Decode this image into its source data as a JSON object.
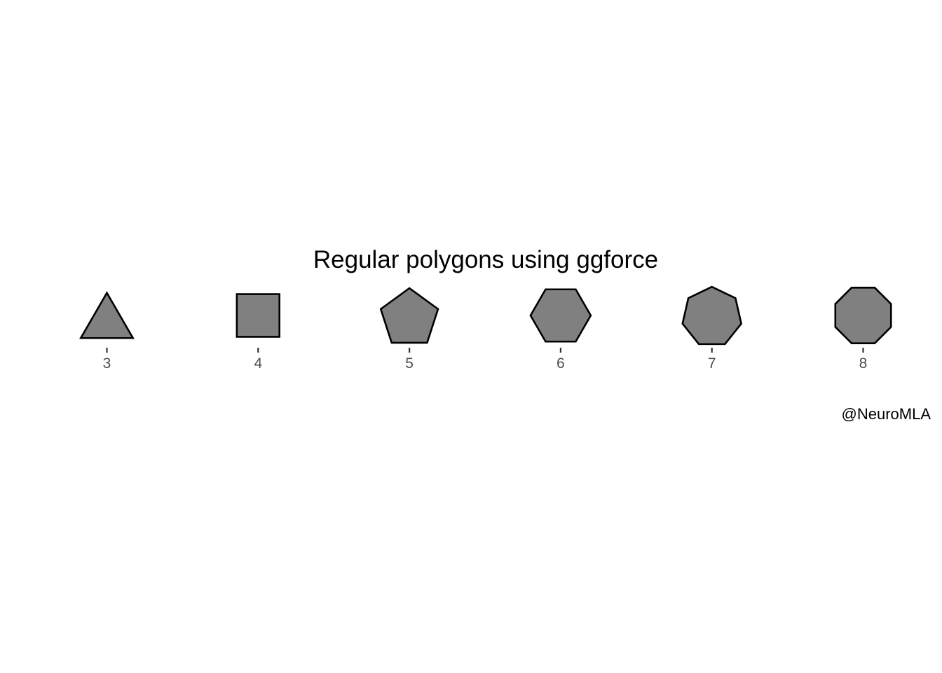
{
  "chart_data": {
    "type": "scatter",
    "title": "Regular polygons using ggforce",
    "caption": "@NeuroMLA",
    "x": [
      3,
      4,
      5,
      6,
      7,
      8
    ],
    "sides": [
      3,
      4,
      5,
      6,
      7,
      8
    ],
    "tick_labels": [
      "3",
      "4",
      "5",
      "6",
      "7",
      "8"
    ],
    "xlim": [
      2.4,
      8.6
    ],
    "xlabel": "",
    "ylabel": "",
    "grid": false,
    "fill_color": "#808080",
    "stroke_color": "#000000"
  }
}
